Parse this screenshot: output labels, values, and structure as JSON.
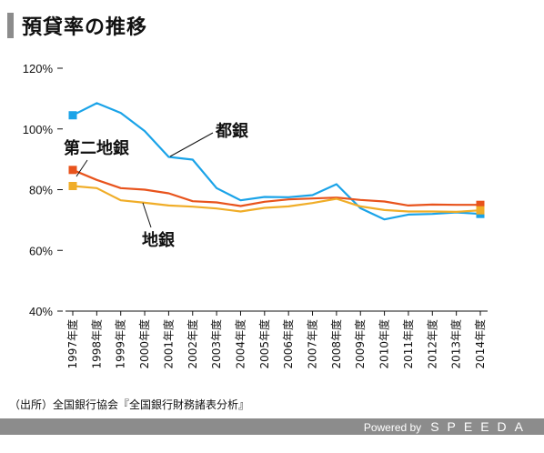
{
  "title": "預貸率の推移",
  "source": "（出所）全国銀行協会『全国銀行財務諸表分析』",
  "footer": {
    "powered_by": "Powered by",
    "brand": "SPEEDA"
  },
  "chart_data": {
    "type": "line",
    "categories": [
      "1997年度",
      "1998年度",
      "1999年度",
      "2000年度",
      "2001年度",
      "2002年度",
      "2003年度",
      "2004年度",
      "2005年度",
      "2006年度",
      "2007年度",
      "2008年度",
      "2009年度",
      "2010年度",
      "2011年度",
      "2012年度",
      "2013年度",
      "2014年度"
    ],
    "ylim": [
      40,
      120
    ],
    "yticks": [
      "40%",
      "60%",
      "80%",
      "100%",
      "120%"
    ],
    "grid": false,
    "series": [
      {
        "name": "都銀",
        "color": "#1aa3e8",
        "values": [
          104.5,
          108.5,
          105.3,
          99.3,
          90.8,
          89.9,
          80.5,
          76.5,
          77.6,
          77.5,
          78.2,
          81.8,
          73.9,
          70.2,
          71.8,
          72.0,
          72.5,
          72.0
        ]
      },
      {
        "name": "第二地銀",
        "color": "#e8531c",
        "values": [
          86.5,
          83.2,
          80.5,
          80.0,
          78.8,
          76.2,
          75.8,
          74.6,
          76.0,
          76.8,
          77.1,
          77.4,
          76.6,
          76.1,
          74.8,
          75.1,
          75.0,
          75.0
        ]
      },
      {
        "name": "地銀",
        "color": "#f0ad28",
        "values": [
          81.2,
          80.5,
          76.5,
          75.7,
          74.8,
          74.4,
          73.8,
          72.8,
          74.0,
          74.5,
          75.6,
          77.0,
          74.5,
          73.3,
          72.8,
          72.8,
          72.7,
          73.2
        ]
      }
    ]
  }
}
